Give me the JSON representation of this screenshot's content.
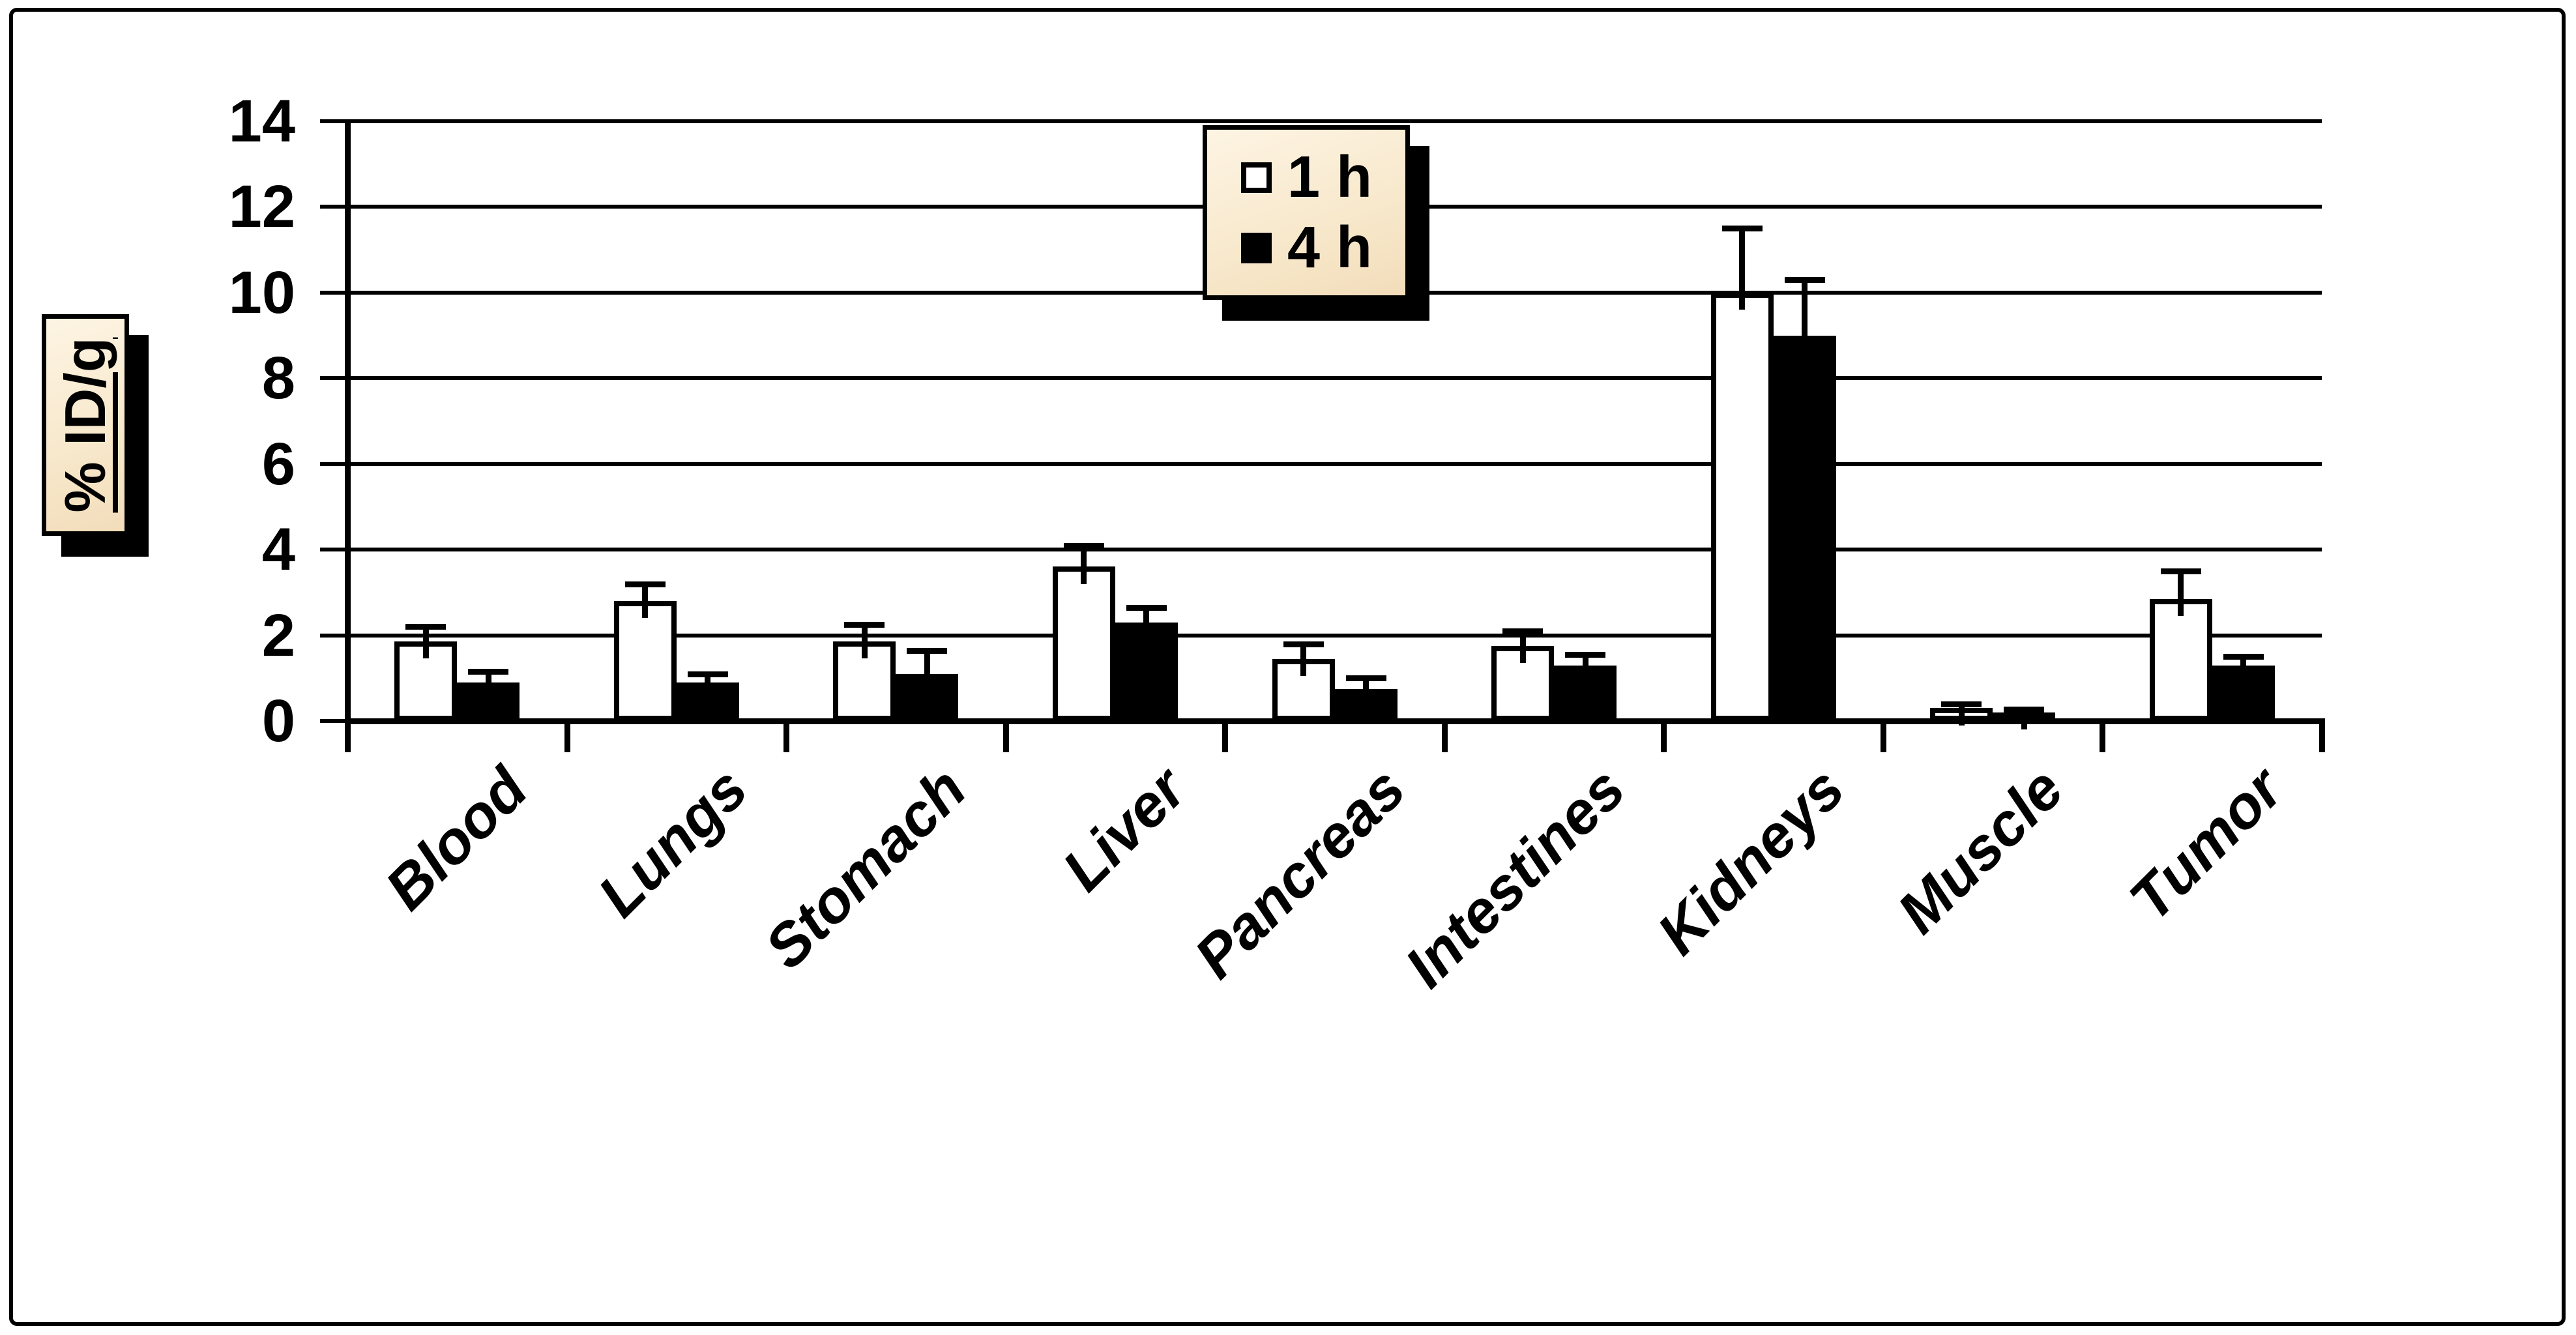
{
  "chart_data": {
    "type": "bar",
    "title": "",
    "ylabel": "% ID/g",
    "xlabel": "",
    "categories": [
      "Blood",
      "Lungs",
      "Stomach",
      "Liver",
      "Pancreas",
      "Intestines",
      "Kidneys",
      "Muscle",
      "Tumor"
    ],
    "yticks": [
      0,
      2,
      4,
      6,
      8,
      10,
      12,
      14
    ],
    "ylim": [
      0,
      14
    ],
    "grid": true,
    "legend_position": "top-center",
    "error_bars": "upper",
    "series": [
      {
        "name": "1 h",
        "fill": "#ffffff",
        "values": [
          1.85,
          2.8,
          1.85,
          3.6,
          1.45,
          1.75,
          10.0,
          0.3,
          2.85
        ],
        "errors": [
          0.35,
          0.4,
          0.4,
          0.5,
          0.35,
          0.35,
          1.5,
          0.1,
          0.65
        ]
      },
      {
        "name": "4 h",
        "fill": "#000000",
        "values": [
          0.9,
          0.9,
          1.1,
          2.3,
          0.75,
          1.3,
          9.0,
          0.2,
          1.3
        ],
        "errors": [
          0.25,
          0.2,
          0.55,
          0.35,
          0.25,
          0.25,
          1.3,
          0.07,
          0.2
        ]
      }
    ]
  },
  "colors": {
    "ink": "#000000",
    "bar_open_fill": "#ffffff",
    "bar_solid_fill": "#000000",
    "label_box_gradient_top": "#fdf4e3",
    "label_box_gradient_mid": "#f8e9cd",
    "label_box_gradient_bottom": "#f2ddba",
    "shadow": "#000000"
  }
}
